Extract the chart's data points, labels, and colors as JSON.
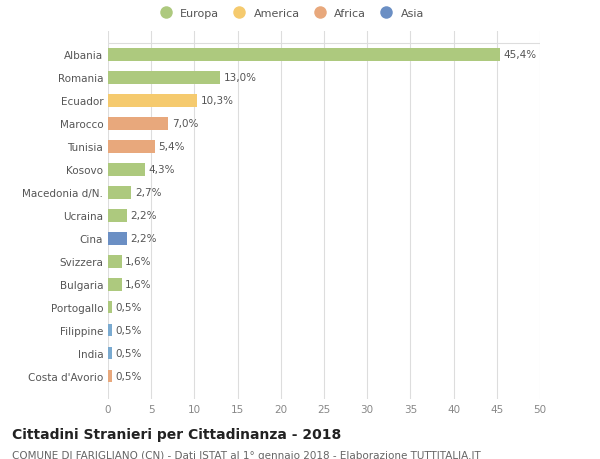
{
  "countries": [
    "Albania",
    "Romania",
    "Ecuador",
    "Marocco",
    "Tunisia",
    "Kosovo",
    "Macedonia d/N.",
    "Ucraina",
    "Cina",
    "Svizzera",
    "Bulgaria",
    "Portogallo",
    "Filippine",
    "India",
    "Costa d'Avorio"
  ],
  "values": [
    45.4,
    13.0,
    10.3,
    7.0,
    5.4,
    4.3,
    2.7,
    2.2,
    2.2,
    1.6,
    1.6,
    0.5,
    0.5,
    0.5,
    0.5
  ],
  "labels": [
    "45,4%",
    "13,0%",
    "10,3%",
    "7,0%",
    "5,4%",
    "4,3%",
    "2,7%",
    "2,2%",
    "2,2%",
    "1,6%",
    "1,6%",
    "0,5%",
    "0,5%",
    "0,5%",
    "0,5%"
  ],
  "colors": [
    "#adc97e",
    "#adc97e",
    "#f5ca6e",
    "#e8a87c",
    "#e8a87c",
    "#adc97e",
    "#adc97e",
    "#adc97e",
    "#6b8fc4",
    "#adc97e",
    "#adc97e",
    "#adc97e",
    "#7aaad0",
    "#7aaad0",
    "#e8a87c"
  ],
  "legend_labels": [
    "Europa",
    "America",
    "Africa",
    "Asia"
  ],
  "legend_colors": [
    "#adc97e",
    "#f5ca6e",
    "#e8a87c",
    "#6b8fc4"
  ],
  "xlim": [
    0,
    50
  ],
  "xticks": [
    0,
    5,
    10,
    15,
    20,
    25,
    30,
    35,
    40,
    45,
    50
  ],
  "title": "Cittadini Stranieri per Cittadinanza - 2018",
  "subtitle": "COMUNE DI FARIGLIANO (CN) - Dati ISTAT al 1° gennaio 2018 - Elaborazione TUTTITALIA.IT",
  "bg_color": "#ffffff",
  "grid_color": "#dddddd",
  "bar_height": 0.55,
  "label_fontsize": 7.5,
  "tick_fontsize": 7.5,
  "title_fontsize": 10,
  "subtitle_fontsize": 7.5
}
